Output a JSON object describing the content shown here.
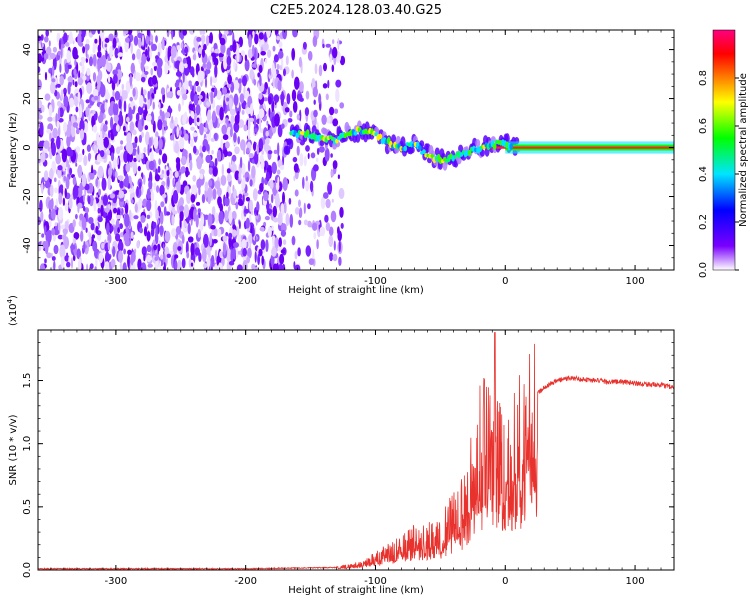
{
  "title": "C2E5.2024.128.03.40.G25",
  "chart_data": [
    {
      "type": "heatmap",
      "xlabel": "Height of straight line (km)",
      "ylabel": "Frequency (Hz)",
      "xlim": [
        -360,
        130
      ],
      "ylim": [
        -50,
        48
      ],
      "xticks": [
        -300,
        -200,
        -100,
        0,
        100
      ],
      "yticks": [
        -40,
        -20,
        0,
        20,
        40
      ],
      "colorbar": {
        "label": "Normalized spectral amplitude",
        "range": [
          0,
          1
        ],
        "ticks": [
          "0.0",
          "0.2",
          "0.4",
          "0.6",
          "0.8"
        ],
        "stops": [
          "#ffffff",
          "#7a00ff",
          "#0000ff",
          "#00e5ff",
          "#00ff00",
          "#ffff00",
          "#ff8000",
          "#ff0000",
          "#ff0080"
        ]
      },
      "ridge": {
        "description_points_x": [
          -165,
          -150,
          -130,
          -120,
          -110,
          -100,
          -90,
          -80,
          -70,
          -60,
          -50,
          -40,
          -30,
          -20,
          -10,
          0,
          10,
          50,
          85,
          130
        ],
        "description_points_y": [
          6,
          5,
          3,
          6,
          7,
          5,
          2,
          0,
          1,
          -3,
          -5,
          -4,
          -2,
          0,
          1,
          2,
          0,
          0,
          0,
          0
        ]
      }
    },
    {
      "type": "line",
      "xlabel": "Height of straight line (km)",
      "ylabel": "SNR (10 * v/v)",
      "multiplier": "(x10",
      "multiplier_exp": "4",
      "xlim": [
        -360,
        130
      ],
      "ylim": [
        0,
        1.9
      ],
      "xticks": [
        -300,
        -200,
        -100,
        0,
        100
      ],
      "yticks": [
        "0.0",
        "0.5",
        "1.0",
        "1.5"
      ],
      "color": "#e8322d",
      "envelope_x": [
        -360,
        -200,
        -130,
        -110,
        -90,
        -70,
        -50,
        -40,
        -30,
        -25,
        -20,
        -15,
        -10,
        0,
        10,
        20,
        25,
        30,
        40,
        50,
        60,
        70,
        80,
        90,
        100,
        110,
        120,
        130
      ],
      "envelope_y": [
        0.01,
        0.01,
        0.02,
        0.05,
        0.15,
        0.25,
        0.28,
        0.45,
        0.55,
        0.8,
        1.0,
        1.1,
        1.05,
        1.0,
        1.05,
        1.25,
        1.4,
        1.45,
        1.5,
        1.52,
        1.51,
        1.5,
        1.49,
        1.49,
        1.48,
        1.47,
        1.46,
        1.45
      ],
      "peak": {
        "x": -8,
        "y": 1.88
      }
    }
  ]
}
